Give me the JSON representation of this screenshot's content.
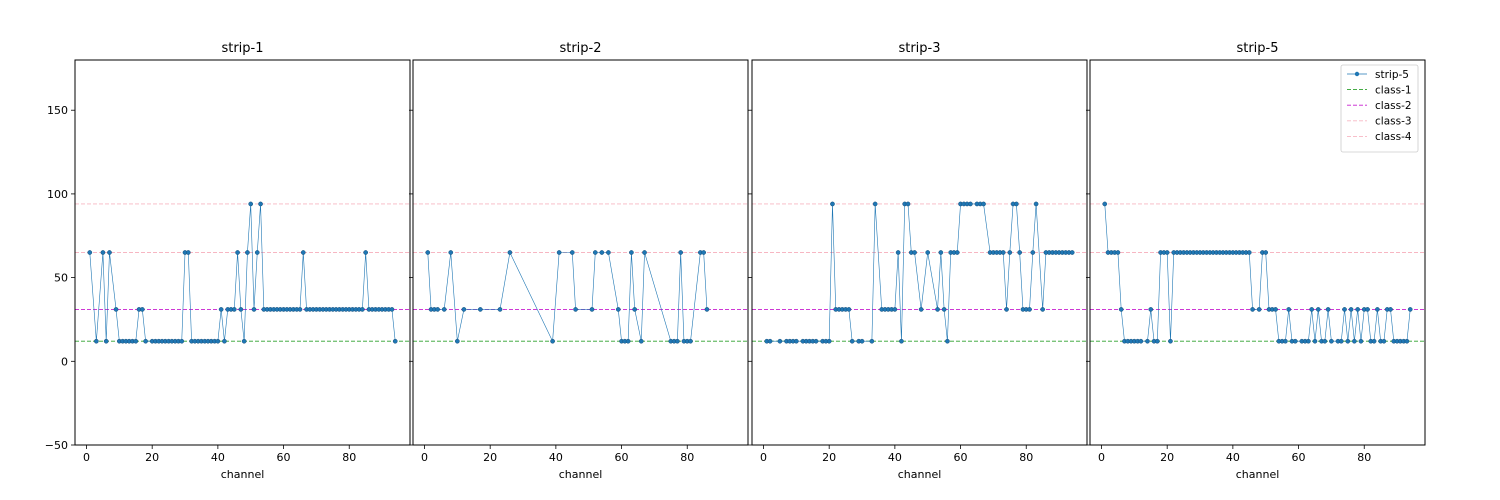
{
  "chart_data": [
    {
      "type": "line",
      "title": "strip-1",
      "xlabel": "channel",
      "ylabel": "",
      "xlim": [
        -3.5,
        98.5
      ],
      "ylim": [
        -50,
        180
      ],
      "xticks": [
        0,
        20,
        40,
        60,
        80
      ],
      "yticks": [
        -50,
        0,
        50,
        100,
        150
      ],
      "show_y_tick_labels": true,
      "series": [
        {
          "name": "strip-5",
          "x": [
            1,
            3,
            5,
            6,
            7,
            9,
            10,
            11,
            12,
            13,
            14,
            15,
            16,
            17,
            18,
            20,
            21,
            22,
            23,
            24,
            25,
            26,
            27,
            28,
            29,
            30,
            31,
            32,
            33,
            34,
            35,
            36,
            37,
            38,
            39,
            40,
            41,
            42,
            43,
            44,
            45,
            46,
            47,
            48,
            49,
            50,
            51,
            52,
            53,
            54,
            55,
            56,
            57,
            58,
            59,
            60,
            61,
            62,
            63,
            64,
            65,
            66,
            67,
            68,
            69,
            70,
            71,
            72,
            73,
            74,
            75,
            76,
            77,
            78,
            79,
            80,
            81,
            82,
            83,
            84,
            85,
            86,
            87,
            88,
            89,
            90,
            91,
            92,
            93,
            94
          ],
          "y": [
            65,
            12,
            65,
            12,
            65,
            31,
            12,
            12,
            12,
            12,
            12,
            12,
            31,
            31,
            12,
            12,
            12,
            12,
            12,
            12,
            12,
            12,
            12,
            12,
            12,
            65,
            65,
            12,
            12,
            12,
            12,
            12,
            12,
            12,
            12,
            12,
            31,
            12,
            31,
            31,
            31,
            65,
            31,
            12,
            65,
            94,
            31,
            65,
            94,
            31,
            31,
            31,
            31,
            31,
            31,
            31,
            31,
            31,
            31,
            31,
            31,
            65,
            31,
            31,
            31,
            31,
            31,
            31,
            31,
            31,
            31,
            31,
            31,
            31,
            31,
            31,
            31,
            31,
            31,
            31,
            65,
            31,
            31,
            31,
            31,
            31,
            31,
            31,
            31,
            12
          ],
          "color": "#1f77b4"
        }
      ]
    },
    {
      "type": "line",
      "title": "strip-2",
      "xlabel": "channel",
      "ylabel": "",
      "xlim": [
        -3.5,
        98.5
      ],
      "ylim": [
        -50,
        180
      ],
      "xticks": [
        0,
        20,
        40,
        60,
        80
      ],
      "yticks": [
        -50,
        0,
        50,
        100,
        150
      ],
      "show_y_tick_labels": false,
      "series": [
        {
          "name": "strip-5",
          "x": [
            1,
            2,
            3,
            4,
            6,
            8,
            10,
            12,
            17,
            23,
            26,
            39,
            41,
            45,
            46,
            51,
            52,
            54,
            56,
            59,
            60,
            61,
            62,
            63,
            64,
            66,
            67,
            75,
            76,
            77,
            78,
            79,
            80,
            81,
            84,
            85,
            86
          ],
          "y": [
            65,
            31,
            31,
            31,
            31,
            65,
            12,
            31,
            31,
            31,
            65,
            12,
            65,
            65,
            31,
            31,
            65,
            65,
            65,
            31,
            12,
            12,
            12,
            65,
            31,
            12,
            65,
            12,
            12,
            12,
            65,
            12,
            12,
            12,
            65,
            65,
            31
          ],
          "color": "#1f77b4"
        }
      ]
    },
    {
      "type": "line",
      "title": "strip-3",
      "xlabel": "channel",
      "ylabel": "",
      "xlim": [
        -3.5,
        98.5
      ],
      "ylim": [
        -50,
        180
      ],
      "xticks": [
        0,
        20,
        40,
        60,
        80
      ],
      "yticks": [
        -50,
        0,
        50,
        100,
        150
      ],
      "show_y_tick_labels": false,
      "series": [
        {
          "name": "strip-5",
          "x": [
            1,
            2,
            5,
            7,
            8,
            9,
            10,
            12,
            13,
            14,
            15,
            16,
            18,
            19,
            20,
            21,
            22,
            23,
            24,
            25,
            26,
            27,
            29,
            30,
            33,
            34,
            36,
            37,
            38,
            39,
            40,
            41,
            42,
            43,
            44,
            45,
            46,
            48,
            50,
            53,
            54,
            55,
            56,
            57,
            58,
            59,
            60,
            61,
            62,
            63,
            65,
            66,
            67,
            69,
            70,
            71,
            72,
            73,
            74,
            75,
            76,
            77,
            78,
            79,
            80,
            81,
            82,
            83,
            85,
            86,
            87,
            88,
            89,
            90,
            91,
            92,
            93,
            94
          ],
          "y": [
            12,
            12,
            12,
            12,
            12,
            12,
            12,
            12,
            12,
            12,
            12,
            12,
            12,
            12,
            12,
            94,
            31,
            31,
            31,
            31,
            31,
            12,
            12,
            12,
            12,
            94,
            31,
            31,
            31,
            31,
            31,
            65,
            12,
            94,
            94,
            65,
            65,
            31,
            65,
            31,
            65,
            31,
            12,
            65,
            65,
            65,
            94,
            94,
            94,
            94,
            94,
            94,
            94,
            65,
            65,
            65,
            65,
            65,
            31,
            65,
            94,
            94,
            65,
            31,
            31,
            31,
            65,
            94,
            31,
            65,
            65,
            65,
            65,
            65,
            65,
            65,
            65,
            65
          ],
          "color": "#1f77b4"
        }
      ]
    },
    {
      "type": "line",
      "title": "strip-5",
      "xlabel": "channel",
      "ylabel": "",
      "xlim": [
        -3.5,
        98.5
      ],
      "ylim": [
        -50,
        180
      ],
      "xticks": [
        0,
        20,
        40,
        60,
        80
      ],
      "yticks": [
        -50,
        0,
        50,
        100,
        150
      ],
      "show_y_tick_labels": false,
      "series": [
        {
          "name": "strip-5",
          "x": [
            1,
            2,
            3,
            4,
            5,
            6,
            7,
            8,
            9,
            10,
            11,
            12,
            14,
            15,
            16,
            17,
            18,
            19,
            20,
            21,
            22,
            23,
            24,
            25,
            26,
            27,
            28,
            29,
            30,
            31,
            32,
            33,
            34,
            35,
            36,
            37,
            38,
            39,
            40,
            41,
            42,
            43,
            44,
            45,
            46,
            48,
            49,
            50,
            51,
            52,
            53,
            54,
            55,
            56,
            57,
            58,
            59,
            61,
            62,
            63,
            64,
            65,
            66,
            67,
            68,
            69,
            70,
            72,
            73,
            74,
            75,
            76,
            77,
            78,
            79,
            80,
            81,
            82,
            83,
            84,
            85,
            86,
            87,
            88,
            89,
            90,
            91,
            92,
            93,
            94
          ],
          "y": [
            94,
            65,
            65,
            65,
            65,
            31,
            12,
            12,
            12,
            12,
            12,
            12,
            12,
            31,
            12,
            12,
            65,
            65,
            65,
            12,
            65,
            65,
            65,
            65,
            65,
            65,
            65,
            65,
            65,
            65,
            65,
            65,
            65,
            65,
            65,
            65,
            65,
            65,
            65,
            65,
            65,
            65,
            65,
            65,
            31,
            31,
            65,
            65,
            31,
            31,
            31,
            12,
            12,
            12,
            31,
            12,
            12,
            12,
            12,
            12,
            31,
            12,
            31,
            12,
            12,
            31,
            12,
            12,
            12,
            31,
            12,
            31,
            12,
            31,
            12,
            31,
            31,
            12,
            12,
            31,
            12,
            12,
            31,
            31,
            12,
            12,
            12,
            12,
            12,
            31
          ],
          "color": "#1f77b4"
        }
      ],
      "legend": {
        "position": "upper-right",
        "entries": [
          {
            "label": "strip-5",
            "style": "line-marker",
            "color": "#1f77b4"
          },
          {
            "label": "class-1",
            "style": "dashed",
            "color": "#2ca02c"
          },
          {
            "label": "class-2",
            "style": "dashed",
            "color": "#c71ccf"
          },
          {
            "label": "class-3",
            "style": "dashed",
            "color": "#f7b6c2"
          },
          {
            "label": "class-4",
            "style": "dashed",
            "color": "#f7b6c2"
          }
        ]
      }
    }
  ],
  "reference_lines": [
    {
      "name": "class-1",
      "y": 12,
      "color": "#2ca02c"
    },
    {
      "name": "class-2",
      "y": 31,
      "color": "#c71ccf"
    },
    {
      "name": "class-3",
      "y": 65,
      "color": "#f7b6c2"
    },
    {
      "name": "class-4",
      "y": 94,
      "color": "#f7b6c2"
    }
  ]
}
